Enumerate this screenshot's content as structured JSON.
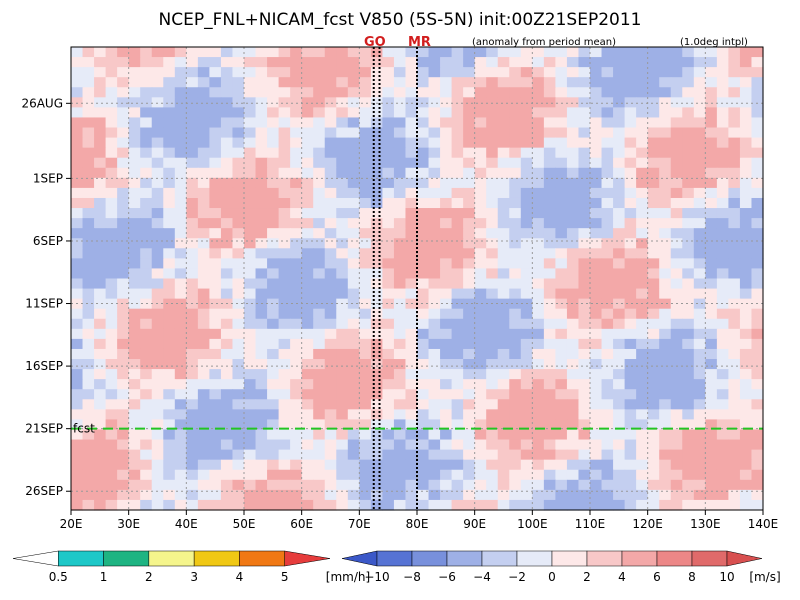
{
  "chart_data": {
    "type": "heatmap",
    "title": "NCEP_FNL+NICAM_fcst V850 (5S-5N) init:00Z21SEP2011",
    "subtitle_left": "(anomaly from period mean)",
    "subtitle_right": "(1.0deg intpl)",
    "x_ticks": [
      "20E",
      "30E",
      "40E",
      "50E",
      "60E",
      "70E",
      "80E",
      "90E",
      "100E",
      "110E",
      "120E",
      "130E",
      "140E"
    ],
    "x_tick_values": [
      20,
      30,
      40,
      50,
      60,
      70,
      80,
      90,
      100,
      110,
      120,
      130,
      140
    ],
    "xlim": [
      20,
      140
    ],
    "y_ticks": [
      "26AUG",
      "1SEP",
      "6SEP",
      "11SEP",
      "16SEP",
      "21SEP",
      "26SEP"
    ],
    "y_tick_values": [
      0,
      6,
      11,
      16,
      21,
      26,
      31
    ],
    "y_range_days_from_26AUG": [
      -4.5,
      32.5
    ],
    "grid": true,
    "markers": [
      {
        "label": "GO",
        "lon": [
          72.5,
          73.5
        ]
      },
      {
        "label": "MR",
        "lon": [
          80
        ]
      }
    ],
    "forecast_line": {
      "label": "fcst",
      "day": 26
    },
    "v850_colorbar": {
      "unit": "[m/s]",
      "labels": [
        "−10",
        "−8",
        "−6",
        "−4",
        "−2",
        "0",
        "2",
        "4",
        "6",
        "8",
        "10"
      ],
      "colors": [
        "#3b58c8",
        "#5673d4",
        "#7890dc",
        "#9eb0e6",
        "#c4cff0",
        "#e6ebf8",
        "#fde8e8",
        "#f8c8c8",
        "#f3a8a8",
        "#ec8787",
        "#e06a6a",
        "#d85050"
      ]
    },
    "rain_colorbar": {
      "unit": "[mm/h]",
      "labels": [
        "0.5",
        "1",
        "2",
        "3",
        "4",
        "5"
      ],
      "colors": [
        "#ffffff",
        "#1ec8c8",
        "#1eb482",
        "#f5f58c",
        "#f0c814",
        "#f07814",
        "#e63c3c"
      ]
    }
  }
}
